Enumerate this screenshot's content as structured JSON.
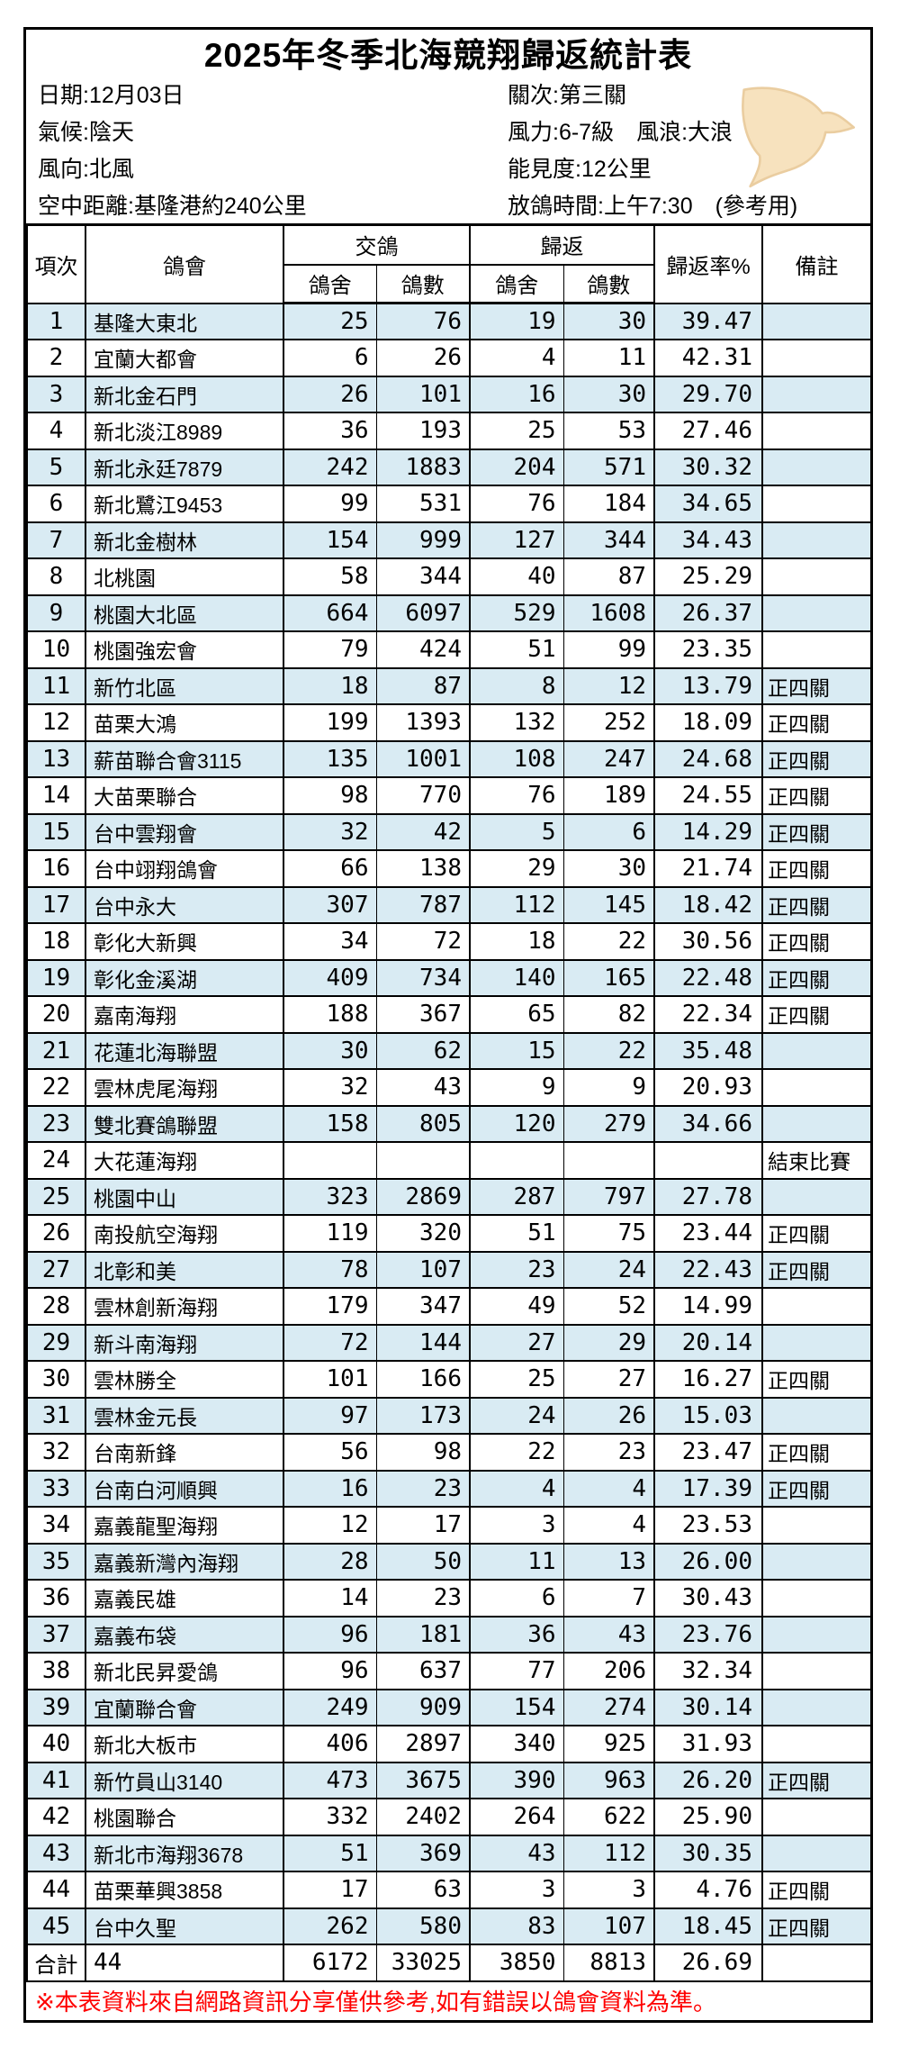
{
  "header": {
    "title": "2025年冬季北海競翔歸返統計表",
    "info_left": [
      "日期:12月03日",
      "氣候:陰天",
      "風向:北風",
      "空中距離:基隆港約240公里"
    ],
    "info_right": [
      "關次:第三關",
      "風力:6-7級　風浪:大浪",
      "能見度:12公里",
      "放鴿時間:上午7:30　(參考用)"
    ]
  },
  "table": {
    "columns": {
      "index": "項次",
      "club": "鴿會",
      "sent": "交鴿",
      "returned": "歸返",
      "loft": "鴿舍",
      "count": "鴿數",
      "rate": "歸返率%",
      "note": "備註"
    },
    "rows": [
      {
        "no": "1",
        "club": "基隆大東北",
        "sent_lofts": "25",
        "sent_birds": "76",
        "ret_lofts": "19",
        "ret_birds": "30",
        "rate": "39.47",
        "note": ""
      },
      {
        "no": "2",
        "club": "宜蘭大都會",
        "sent_lofts": "6",
        "sent_birds": "26",
        "ret_lofts": "4",
        "ret_birds": "11",
        "rate": "42.31",
        "note": ""
      },
      {
        "no": "3",
        "club": "新北金石門",
        "sent_lofts": "26",
        "sent_birds": "101",
        "ret_lofts": "16",
        "ret_birds": "30",
        "rate": "29.70",
        "note": ""
      },
      {
        "no": "4",
        "club": "新北淡江8989",
        "sent_lofts": "36",
        "sent_birds": "193",
        "ret_lofts": "25",
        "ret_birds": "53",
        "rate": "27.46",
        "note": ""
      },
      {
        "no": "5",
        "club": "新北永廷7879",
        "sent_lofts": "242",
        "sent_birds": "1883",
        "ret_lofts": "204",
        "ret_birds": "571",
        "rate": "30.32",
        "note": ""
      },
      {
        "no": "6",
        "club": "新北鷺江9453",
        "sent_lofts": "99",
        "sent_birds": "531",
        "ret_lofts": "76",
        "ret_birds": "184",
        "rate": "34.65",
        "note": "",
        "highlight_rate": true
      },
      {
        "no": "7",
        "club": "新北金樹林",
        "sent_lofts": "154",
        "sent_birds": "999",
        "ret_lofts": "127",
        "ret_birds": "344",
        "rate": "34.43",
        "note": ""
      },
      {
        "no": "8",
        "club": "北桃園",
        "sent_lofts": "58",
        "sent_birds": "344",
        "ret_lofts": "40",
        "ret_birds": "87",
        "rate": "25.29",
        "note": ""
      },
      {
        "no": "9",
        "club": "桃園大北區",
        "sent_lofts": "664",
        "sent_birds": "6097",
        "ret_lofts": "529",
        "ret_birds": "1608",
        "rate": "26.37",
        "note": ""
      },
      {
        "no": "10",
        "club": "桃園強宏會",
        "sent_lofts": "79",
        "sent_birds": "424",
        "ret_lofts": "51",
        "ret_birds": "99",
        "rate": "23.35",
        "note": ""
      },
      {
        "no": "11",
        "club": "新竹北區",
        "sent_lofts": "18",
        "sent_birds": "87",
        "ret_lofts": "8",
        "ret_birds": "12",
        "rate": "13.79",
        "note": "正四關"
      },
      {
        "no": "12",
        "club": "苗栗大鴻",
        "sent_lofts": "199",
        "sent_birds": "1393",
        "ret_lofts": "132",
        "ret_birds": "252",
        "rate": "18.09",
        "note": "正四關"
      },
      {
        "no": "13",
        "club": "薪苗聯合會3115",
        "sent_lofts": "135",
        "sent_birds": "1001",
        "ret_lofts": "108",
        "ret_birds": "247",
        "rate": "24.68",
        "note": "正四關"
      },
      {
        "no": "14",
        "club": "大苗栗聯合",
        "sent_lofts": "98",
        "sent_birds": "770",
        "ret_lofts": "76",
        "ret_birds": "189",
        "rate": "24.55",
        "note": "正四關"
      },
      {
        "no": "15",
        "club": "台中雲翔會",
        "sent_lofts": "32",
        "sent_birds": "42",
        "ret_lofts": "5",
        "ret_birds": "6",
        "rate": "14.29",
        "note": "正四關"
      },
      {
        "no": "16",
        "club": "台中翊翔鴿會",
        "sent_lofts": "66",
        "sent_birds": "138",
        "ret_lofts": "29",
        "ret_birds": "30",
        "rate": "21.74",
        "note": "正四關"
      },
      {
        "no": "17",
        "club": "台中永大",
        "sent_lofts": "307",
        "sent_birds": "787",
        "ret_lofts": "112",
        "ret_birds": "145",
        "rate": "18.42",
        "note": "正四關"
      },
      {
        "no": "18",
        "club": "彰化大新興",
        "sent_lofts": "34",
        "sent_birds": "72",
        "ret_lofts": "18",
        "ret_birds": "22",
        "rate": "30.56",
        "note": "正四關"
      },
      {
        "no": "19",
        "club": "彰化金溪湖",
        "sent_lofts": "409",
        "sent_birds": "734",
        "ret_lofts": "140",
        "ret_birds": "165",
        "rate": "22.48",
        "note": "正四關"
      },
      {
        "no": "20",
        "club": "嘉南海翔",
        "sent_lofts": "188",
        "sent_birds": "367",
        "ret_lofts": "65",
        "ret_birds": "82",
        "rate": "22.34",
        "note": "正四關"
      },
      {
        "no": "21",
        "club": "花蓮北海聯盟",
        "sent_lofts": "30",
        "sent_birds": "62",
        "ret_lofts": "15",
        "ret_birds": "22",
        "rate": "35.48",
        "note": ""
      },
      {
        "no": "22",
        "club": "雲林虎尾海翔",
        "sent_lofts": "32",
        "sent_birds": "43",
        "ret_lofts": "9",
        "ret_birds": "9",
        "rate": "20.93",
        "note": ""
      },
      {
        "no": "23",
        "club": "雙北賽鴿聯盟",
        "sent_lofts": "158",
        "sent_birds": "805",
        "ret_lofts": "120",
        "ret_birds": "279",
        "rate": "34.66",
        "note": ""
      },
      {
        "no": "24",
        "club": "大花蓮海翔",
        "sent_lofts": "",
        "sent_birds": "",
        "ret_lofts": "",
        "ret_birds": "",
        "rate": "",
        "note": "結束比賽"
      },
      {
        "no": "25",
        "club": "桃園中山",
        "sent_lofts": "323",
        "sent_birds": "2869",
        "ret_lofts": "287",
        "ret_birds": "797",
        "rate": "27.78",
        "note": ""
      },
      {
        "no": "26",
        "club": "南投航空海翔",
        "sent_lofts": "119",
        "sent_birds": "320",
        "ret_lofts": "51",
        "ret_birds": "75",
        "rate": "23.44",
        "note": "正四關"
      },
      {
        "no": "27",
        "club": "北彰和美",
        "sent_lofts": "78",
        "sent_birds": "107",
        "ret_lofts": "23",
        "ret_birds": "24",
        "rate": "22.43",
        "note": "正四關"
      },
      {
        "no": "28",
        "club": "雲林創新海翔",
        "sent_lofts": "179",
        "sent_birds": "347",
        "ret_lofts": "49",
        "ret_birds": "52",
        "rate": "14.99",
        "note": ""
      },
      {
        "no": "29",
        "club": "新斗南海翔",
        "sent_lofts": "72",
        "sent_birds": "144",
        "ret_lofts": "27",
        "ret_birds": "29",
        "rate": "20.14",
        "note": ""
      },
      {
        "no": "30",
        "club": "雲林勝全",
        "sent_lofts": "101",
        "sent_birds": "166",
        "ret_lofts": "25",
        "ret_birds": "27",
        "rate": "16.27",
        "note": "正四關"
      },
      {
        "no": "31",
        "club": "雲林金元長",
        "sent_lofts": "97",
        "sent_birds": "173",
        "ret_lofts": "24",
        "ret_birds": "26",
        "rate": "15.03",
        "note": ""
      },
      {
        "no": "32",
        "club": "台南新鋒",
        "sent_lofts": "56",
        "sent_birds": "98",
        "ret_lofts": "22",
        "ret_birds": "23",
        "rate": "23.47",
        "note": "正四關"
      },
      {
        "no": "33",
        "club": "台南白河順興",
        "sent_lofts": "16",
        "sent_birds": "23",
        "ret_lofts": "4",
        "ret_birds": "4",
        "rate": "17.39",
        "note": "正四關"
      },
      {
        "no": "34",
        "club": "嘉義龍聖海翔",
        "sent_lofts": "12",
        "sent_birds": "17",
        "ret_lofts": "3",
        "ret_birds": "4",
        "rate": "23.53",
        "note": ""
      },
      {
        "no": "35",
        "club": "嘉義新灣內海翔",
        "sent_lofts": "28",
        "sent_birds": "50",
        "ret_lofts": "11",
        "ret_birds": "13",
        "rate": "26.00",
        "note": ""
      },
      {
        "no": "36",
        "club": "嘉義民雄",
        "sent_lofts": "14",
        "sent_birds": "23",
        "ret_lofts": "6",
        "ret_birds": "7",
        "rate": "30.43",
        "note": ""
      },
      {
        "no": "37",
        "club": "嘉義布袋",
        "sent_lofts": "96",
        "sent_birds": "181",
        "ret_lofts": "36",
        "ret_birds": "43",
        "rate": "23.76",
        "note": ""
      },
      {
        "no": "38",
        "club": "新北民昇愛鴿",
        "sent_lofts": "96",
        "sent_birds": "637",
        "ret_lofts": "77",
        "ret_birds": "206",
        "rate": "32.34",
        "note": ""
      },
      {
        "no": "39",
        "club": "宜蘭聯合會",
        "sent_lofts": "249",
        "sent_birds": "909",
        "ret_lofts": "154",
        "ret_birds": "274",
        "rate": "30.14",
        "note": ""
      },
      {
        "no": "40",
        "club": "新北大板市",
        "sent_lofts": "406",
        "sent_birds": "2897",
        "ret_lofts": "340",
        "ret_birds": "925",
        "rate": "31.93",
        "note": ""
      },
      {
        "no": "41",
        "club": "新竹員山3140",
        "sent_lofts": "473",
        "sent_birds": "3675",
        "ret_lofts": "390",
        "ret_birds": "963",
        "rate": "26.20",
        "note": "正四關"
      },
      {
        "no": "42",
        "club": "桃園聯合",
        "sent_lofts": "332",
        "sent_birds": "2402",
        "ret_lofts": "264",
        "ret_birds": "622",
        "rate": "25.90",
        "note": ""
      },
      {
        "no": "43",
        "club": "新北市海翔3678",
        "sent_lofts": "51",
        "sent_birds": "369",
        "ret_lofts": "43",
        "ret_birds": "112",
        "rate": "30.35",
        "note": ""
      },
      {
        "no": "44",
        "club": "苗栗華興3858",
        "sent_lofts": "17",
        "sent_birds": "63",
        "ret_lofts": "3",
        "ret_birds": "3",
        "rate": "4.76",
        "note": "正四關"
      },
      {
        "no": "45",
        "club": "台中久聖",
        "sent_lofts": "262",
        "sent_birds": "580",
        "ret_lofts": "83",
        "ret_birds": "107",
        "rate": "18.45",
        "note": "正四關"
      }
    ],
    "total": {
      "label": "合計",
      "club_count": "44",
      "sent_lofts": "6172",
      "sent_birds": "33025",
      "ret_lofts": "3850",
      "ret_birds": "8813",
      "rate": "26.69",
      "note": ""
    }
  },
  "footer": {
    "note": "※本表資料來自網路資訊分享僅供參考,如有錯誤以鴿會資料為準。"
  },
  "colors": {
    "zebra_blue": "#D9EBF3",
    "footer_red": "#FF0000",
    "dove_fill": "#F7E2BE",
    "dove_stroke": "#EACDA0"
  }
}
